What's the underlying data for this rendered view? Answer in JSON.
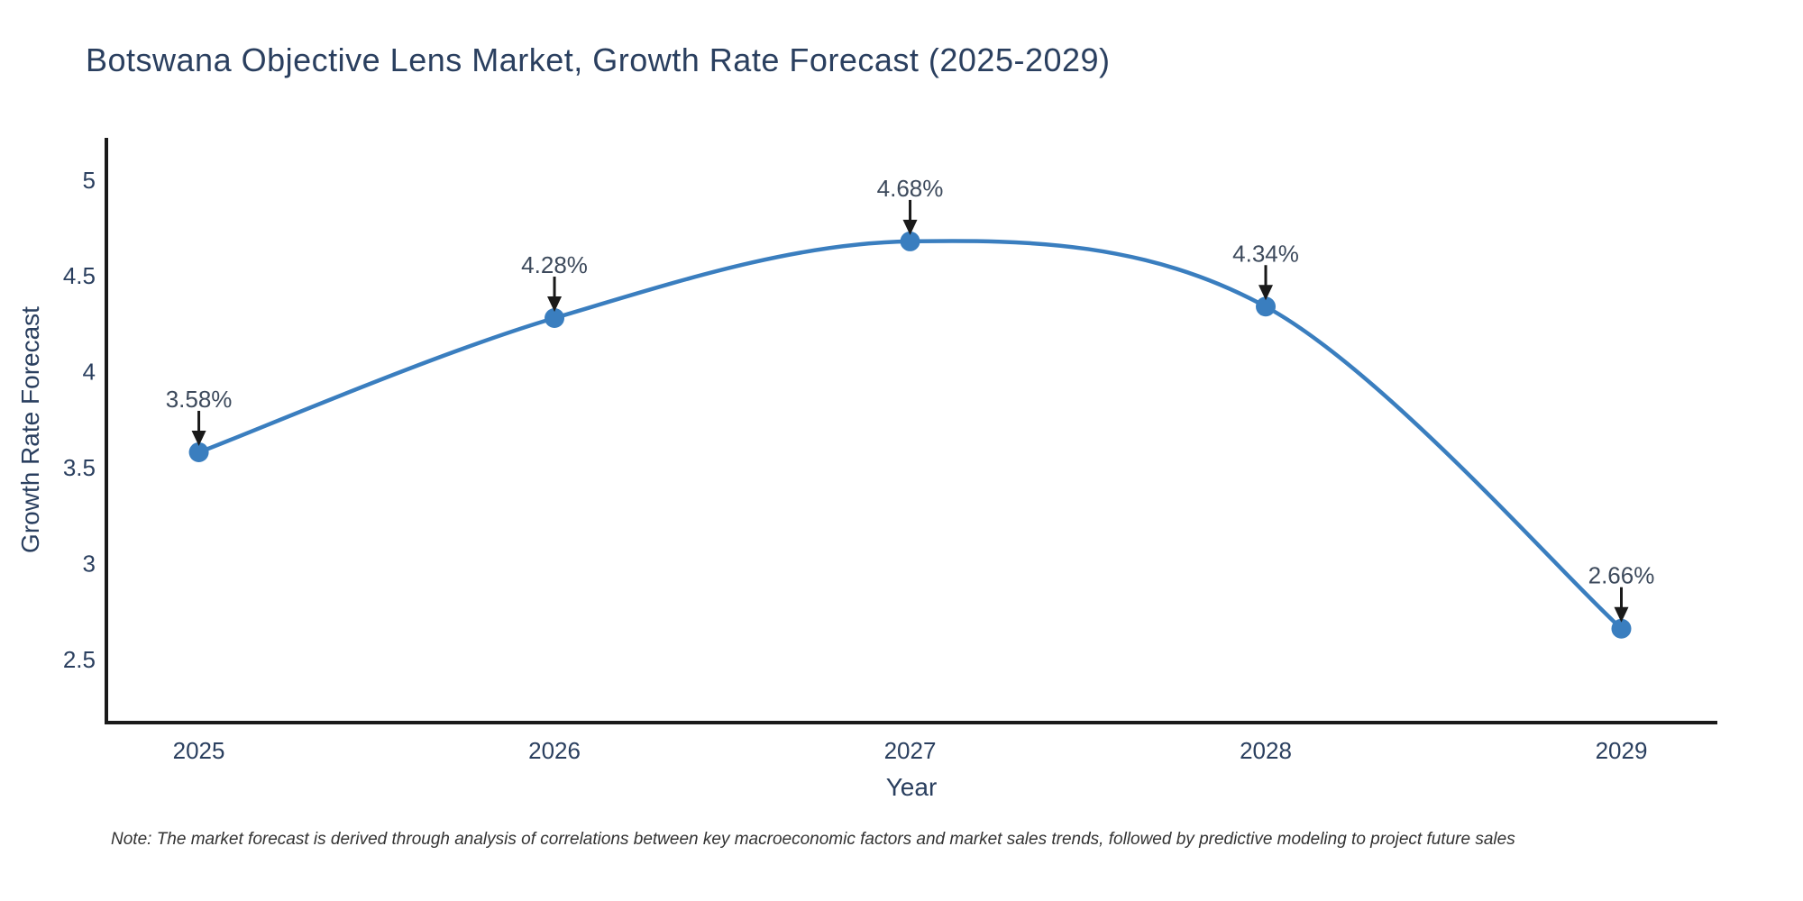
{
  "page": {
    "background": "#ffffff"
  },
  "chart_data": {
    "type": "line",
    "title": "Botswana Objective Lens Market, Growth Rate Forecast (2025-2029)",
    "xlabel": "Year",
    "ylabel": "Growth Rate Forecast",
    "x": [
      2025,
      2026,
      2027,
      2028,
      2029
    ],
    "series": [
      {
        "name": "Growth Rate Forecast",
        "values": [
          3.58,
          4.28,
          4.68,
          4.34,
          2.66
        ]
      }
    ],
    "point_labels": [
      "3.58%",
      "4.28%",
      "4.68%",
      "4.34%",
      "2.66%"
    ],
    "xtick_labels": [
      "2025",
      "2026",
      "2027",
      "2028",
      "2029"
    ],
    "ytick_values": [
      2.5,
      3,
      3.5,
      4,
      4.5,
      5
    ],
    "ytick_labels": [
      "2.5",
      "3",
      "3.5",
      "4",
      "4.5",
      "5"
    ],
    "xlim": [
      2024.74,
      2029.27
    ],
    "ylim": [
      2.17,
      5.22
    ],
    "grid": false,
    "legend_position": "none",
    "line_shape": "spline",
    "colors": {
      "line": "#3a7ebf",
      "marker": "#3a7ebf",
      "axis_line": "#1a1a1a",
      "tick_text": "#2a3f5f",
      "title_text": "#2a3f5f",
      "annotation_text": "#3d4a5c",
      "arrow": "#1a1a1a",
      "note_text": "#333333"
    }
  },
  "note": "Note: The market forecast is derived through analysis of correlations between key macroeconomic factors and market sales trends, followed by predictive modeling to project future sales"
}
